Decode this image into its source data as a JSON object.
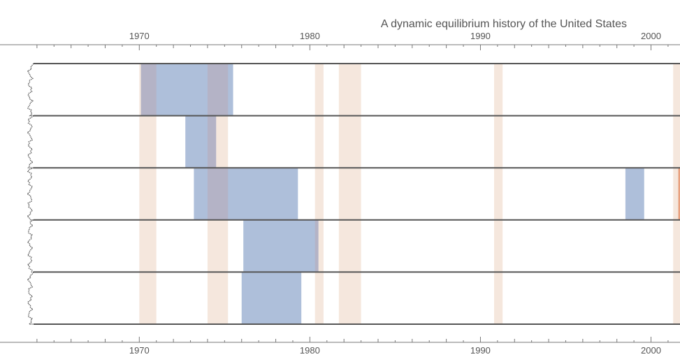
{
  "chart_data": {
    "type": "timeline",
    "title": "A dynamic equilibrium history of the United States",
    "xlim": [
      1963.8,
      2001.7
    ],
    "x_ticks": [
      1970,
      1980,
      1990,
      2000
    ],
    "rows": 5,
    "recessions": [
      {
        "start": 1970.0,
        "end": 1971.0
      },
      {
        "start": 1974.0,
        "end": 1975.2
      },
      {
        "start": 1980.3,
        "end": 1980.8
      },
      {
        "start": 1981.7,
        "end": 1983.0
      },
      {
        "start": 1990.8,
        "end": 1991.3
      },
      {
        "start": 2001.3,
        "end": 2001.9
      }
    ],
    "shocks": [
      {
        "row": 0,
        "start": 1970.1,
        "end": 1975.5
      },
      {
        "row": 1,
        "start": 1972.7,
        "end": 1974.5
      },
      {
        "row": 2,
        "start": 1973.2,
        "end": 1979.3
      },
      {
        "row": 2,
        "start": 1998.5,
        "end": 1999.6
      },
      {
        "row": 3,
        "start": 1976.1,
        "end": 1980.5
      },
      {
        "row": 4,
        "start": 1976.0,
        "end": 1979.5
      }
    ],
    "highlights": [
      {
        "row": 2,
        "start": 2001.6,
        "end": 2001.7
      }
    ],
    "colors": {
      "recession": "#f5e7dd",
      "shock": "#aebfda",
      "overlap": "#b4b3c6",
      "highlight": "#e8a07e",
      "row_line": "#555555",
      "axis": "#777777",
      "text": "#555555"
    }
  }
}
